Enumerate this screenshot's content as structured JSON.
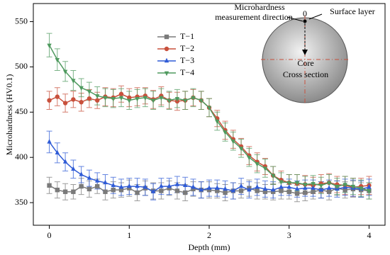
{
  "chart_data": {
    "type": "line",
    "x_label": "Depth (mm)",
    "y_label": "Microhardness (HV0.1)",
    "x": [
      0,
      0.1,
      0.2,
      0.3,
      0.4,
      0.5,
      0.6,
      0.7,
      0.8,
      0.9,
      1,
      1.1,
      1.2,
      1.3,
      1.4,
      1.5,
      1.6,
      1.7,
      1.8,
      1.9,
      2,
      2.1,
      2.2,
      2.3,
      2.4,
      2.5,
      2.6,
      2.7,
      2.8,
      2.9,
      3,
      3.1,
      3.2,
      3.3,
      3.4,
      3.5,
      3.6,
      3.7,
      3.8,
      3.9,
      4
    ],
    "xlim": [
      -0.2,
      4.2
    ],
    "xticks": [
      0,
      1,
      2,
      3,
      4
    ],
    "ylim": [
      325,
      570
    ],
    "yticks": [
      350,
      400,
      450,
      500,
      550
    ],
    "legend": "upper center",
    "series": [
      {
        "name": "T−1",
        "color": "#7a7a7a",
        "marker": "square",
        "values": [
          369,
          364,
          362,
          362,
          368,
          365,
          368,
          362,
          364,
          364,
          366,
          361,
          366,
          363,
          363,
          366,
          363,
          361,
          365,
          364,
          364,
          363,
          361,
          363,
          363,
          366,
          363,
          362,
          362,
          363,
          362,
          360,
          361,
          362,
          364,
          362,
          366,
          364,
          365,
          364,
          363
        ],
        "errors": [
          9,
          9,
          9,
          8,
          9,
          9,
          8,
          9,
          9,
          8,
          9,
          9,
          8,
          9,
          9,
          8,
          9,
          9,
          8,
          9,
          9,
          8,
          9,
          9,
          8,
          9,
          9,
          8,
          9,
          9,
          8,
          9,
          9,
          8,
          9,
          9,
          8,
          9,
          9,
          8,
          9
        ]
      },
      {
        "name": "T−2",
        "color": "#c8503c",
        "marker": "circle",
        "values": [
          463,
          467,
          460,
          464,
          461,
          465,
          463,
          467,
          466,
          470,
          466,
          467,
          468,
          464,
          468,
          463,
          462,
          463,
          466,
          463,
          455,
          443,
          430,
          420,
          412,
          402,
          395,
          390,
          380,
          375,
          372,
          371,
          370,
          369,
          371,
          372,
          370,
          369,
          367,
          368,
          369
        ],
        "errors": [
          10,
          10,
          10,
          9,
          10,
          10,
          9,
          10,
          10,
          9,
          10,
          10,
          9,
          10,
          10,
          9,
          10,
          10,
          9,
          10,
          10,
          9,
          10,
          10,
          9,
          10,
          10,
          9,
          10,
          10,
          9,
          10,
          10,
          9,
          10,
          10,
          9,
          10,
          10,
          9,
          10
        ]
      },
      {
        "name": "T−3",
        "color": "#2f5bd6",
        "marker": "triangle-up",
        "values": [
          417,
          405,
          395,
          387,
          381,
          377,
          374,
          372,
          369,
          367,
          368,
          368,
          367,
          362,
          368,
          368,
          370,
          369,
          367,
          364,
          366,
          366,
          365,
          363,
          368,
          364,
          367,
          365,
          364,
          367,
          367,
          365,
          366,
          366,
          364,
          366,
          365,
          367,
          366,
          365,
          367
        ],
        "errors": [
          12,
          11,
          10,
          10,
          9,
          9,
          9,
          9,
          9,
          9,
          9,
          9,
          9,
          9,
          9,
          9,
          9,
          9,
          9,
          9,
          9,
          9,
          9,
          9,
          9,
          9,
          9,
          9,
          9,
          9,
          9,
          9,
          9,
          9,
          9,
          9,
          9,
          9,
          9,
          9,
          9
        ]
      },
      {
        "name": "T−4",
        "color": "#4f9a5f",
        "marker": "triangle-down",
        "values": [
          524,
          508,
          495,
          485,
          477,
          473,
          468,
          466,
          465,
          466,
          463,
          465,
          466,
          463,
          466,
          463,
          465,
          463,
          466,
          463,
          455,
          440,
          428,
          418,
          410,
          400,
          393,
          388,
          380,
          373,
          372,
          372,
          370,
          371,
          369,
          372,
          368,
          370,
          368,
          366,
          363
        ],
        "errors": [
          13,
          12,
          11,
          11,
          10,
          10,
          10,
          10,
          10,
          10,
          10,
          10,
          10,
          10,
          10,
          10,
          10,
          10,
          10,
          10,
          10,
          10,
          10,
          10,
          10,
          10,
          10,
          10,
          10,
          10,
          9,
          9,
          9,
          9,
          9,
          9,
          9,
          9,
          9,
          9,
          9
        ]
      }
    ],
    "annotations": [
      "Microhardness",
      "measurement direction",
      "0",
      "Surface layer",
      "Core",
      "Cross section"
    ]
  }
}
